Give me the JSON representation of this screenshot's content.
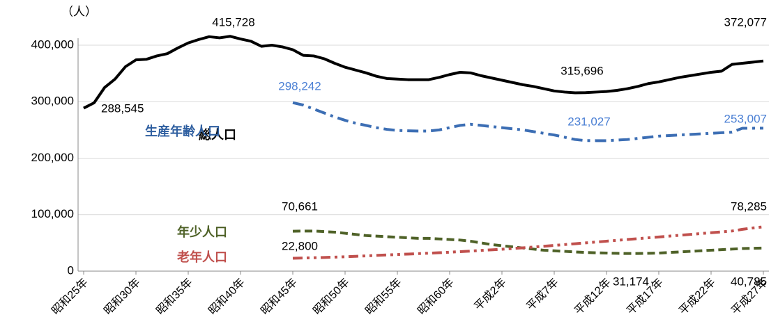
{
  "chart_data": {
    "type": "line",
    "y_label": "（人）",
    "categories": [
      "昭和25年",
      null,
      null,
      null,
      null,
      "昭和30年",
      null,
      null,
      null,
      null,
      "昭和35年",
      null,
      null,
      null,
      null,
      "昭和40年",
      null,
      null,
      null,
      null,
      "昭和45年",
      null,
      null,
      null,
      null,
      "昭和50年",
      null,
      null,
      null,
      null,
      "昭和55年",
      null,
      null,
      null,
      null,
      "昭和60年",
      null,
      null,
      null,
      null,
      "平成2年",
      null,
      null,
      null,
      null,
      "平成7年",
      null,
      null,
      null,
      null,
      "平成12年",
      null,
      null,
      null,
      null,
      "平成17年",
      null,
      null,
      null,
      null,
      "平成22年",
      null,
      null,
      null,
      null,
      "平成27年"
    ],
    "ylim": [
      0,
      400000
    ],
    "yticks": [
      0,
      {
        "value": 100000,
        "label": "100,000"
      },
      {
        "value": 200000,
        "label": "200,000"
      },
      {
        "value": 300000,
        "label": "300,000"
      },
      {
        "value": 400000,
        "label": "400,000"
      }
    ],
    "grid": true,
    "series": [
      {
        "name": "総人口",
        "color": "#000000",
        "values": [
          288545,
          298000,
          325000,
          340000,
          362000,
          374000,
          375000,
          381000,
          385000,
          395000,
          404000,
          410000,
          415000,
          413000,
          415728,
          411000,
          407000,
          398000,
          400000,
          397000,
          392000,
          382000,
          381000,
          376000,
          368000,
          361000,
          356000,
          351000,
          345000,
          341000,
          340000,
          339000,
          339000,
          339000,
          343000,
          348000,
          352000,
          351000,
          346000,
          342000,
          338000,
          334000,
          330000,
          327000,
          323000,
          319000,
          317000,
          315696,
          316000,
          317000,
          318000,
          320000,
          323000,
          327000,
          332000,
          335000,
          339000,
          343000,
          346000,
          349000,
          352000,
          354000,
          366000,
          368000,
          370000,
          372077
        ],
        "value_labels": [
          "288,545",
          null,
          null,
          null,
          null,
          null,
          null,
          null,
          null,
          null,
          null,
          null,
          null,
          null,
          "415,728",
          null,
          null,
          null,
          null,
          null,
          null,
          null,
          null,
          null,
          null,
          null,
          null,
          null,
          null,
          null,
          null,
          null,
          null,
          null,
          null,
          null,
          null,
          null,
          null,
          null,
          null,
          null,
          null,
          null,
          null,
          null,
          null,
          "315,696",
          null,
          null,
          null,
          null,
          null,
          null,
          null,
          null,
          null,
          null,
          null,
          null,
          null,
          null,
          null,
          null,
          null,
          "372,077"
        ]
      },
      {
        "name": "生産年齢人口",
        "color": "#3c6eb4",
        "values": [
          null,
          null,
          null,
          null,
          null,
          null,
          null,
          null,
          null,
          null,
          null,
          null,
          null,
          null,
          null,
          null,
          null,
          null,
          null,
          null,
          298242,
          294000,
          287000,
          280000,
          273000,
          267000,
          262000,
          258000,
          254000,
          251000,
          249000,
          248500,
          248000,
          248000,
          250000,
          254000,
          258000,
          260000,
          258000,
          256000,
          254000,
          252000,
          250000,
          247000,
          244000,
          241000,
          237000,
          233000,
          231027,
          231000,
          231000,
          232000,
          233000,
          235000,
          237000,
          239000,
          240000,
          241000,
          242000,
          243000,
          244000,
          245000,
          246000,
          253000,
          253000,
          253007
        ],
        "value_labels": [
          null,
          null,
          null,
          null,
          null,
          null,
          null,
          null,
          null,
          null,
          null,
          null,
          null,
          null,
          null,
          null,
          null,
          null,
          null,
          null,
          "298,242",
          null,
          null,
          null,
          null,
          null,
          null,
          null,
          null,
          null,
          null,
          null,
          null,
          null,
          null,
          null,
          null,
          null,
          null,
          null,
          null,
          null,
          null,
          null,
          null,
          null,
          null,
          null,
          "231,027",
          null,
          null,
          null,
          null,
          null,
          null,
          null,
          null,
          null,
          null,
          null,
          null,
          null,
          null,
          null,
          null,
          "253,007"
        ]
      },
      {
        "name": "年少人口",
        "color": "#4f6228",
        "values": [
          null,
          null,
          null,
          null,
          null,
          null,
          null,
          null,
          null,
          null,
          null,
          null,
          null,
          null,
          null,
          null,
          null,
          null,
          null,
          null,
          70661,
          71000,
          71000,
          70000,
          69000,
          67000,
          65000,
          63000,
          62000,
          61000,
          60000,
          59000,
          58000,
          58000,
          57000,
          56000,
          55000,
          53000,
          50000,
          47000,
          45000,
          43000,
          41000,
          39000,
          37000,
          36000,
          35000,
          34000,
          33000,
          32500,
          32000,
          31500,
          31174,
          31200,
          31500,
          32000,
          33000,
          34000,
          35000,
          36000,
          37000,
          38000,
          39000,
          40000,
          40500,
          40785
        ],
        "value_labels": [
          null,
          null,
          null,
          null,
          null,
          null,
          null,
          null,
          null,
          null,
          null,
          null,
          null,
          null,
          null,
          null,
          null,
          null,
          null,
          null,
          "70,661",
          null,
          null,
          null,
          null,
          null,
          null,
          null,
          null,
          null,
          null,
          null,
          null,
          null,
          null,
          null,
          null,
          null,
          null,
          null,
          null,
          null,
          null,
          null,
          null,
          null,
          null,
          null,
          null,
          null,
          null,
          null,
          "31,174",
          null,
          null,
          null,
          null,
          null,
          null,
          null,
          null,
          null,
          null,
          null,
          null,
          "40,785"
        ]
      },
      {
        "name": "老年人口",
        "color": "#c0504d",
        "values": [
          null,
          null,
          null,
          null,
          null,
          null,
          null,
          null,
          null,
          null,
          null,
          null,
          null,
          null,
          null,
          null,
          null,
          null,
          null,
          null,
          22800,
          23200,
          23700,
          24200,
          24800,
          25500,
          26200,
          27000,
          27800,
          28600,
          29400,
          30200,
          31000,
          31800,
          32600,
          33500,
          34500,
          35500,
          36600,
          37700,
          38800,
          40000,
          41300,
          42600,
          44000,
          45500,
          47000,
          48500,
          50000,
          51500,
          53000,
          54500,
          56000,
          57500,
          59000,
          60500,
          62000,
          63500,
          65000,
          66500,
          68000,
          69500,
          71000,
          74000,
          76500,
          78285
        ],
        "value_labels": [
          null,
          null,
          null,
          null,
          null,
          null,
          null,
          null,
          null,
          null,
          null,
          null,
          null,
          null,
          null,
          null,
          null,
          null,
          null,
          null,
          "22,800",
          null,
          null,
          null,
          null,
          null,
          null,
          null,
          null,
          null,
          null,
          null,
          null,
          null,
          null,
          null,
          null,
          null,
          null,
          null,
          null,
          null,
          null,
          null,
          null,
          null,
          null,
          null,
          null,
          null,
          null,
          null,
          null,
          null,
          null,
          null,
          null,
          null,
          null,
          null,
          null,
          null,
          null,
          null,
          null,
          "78,285"
        ]
      }
    ]
  }
}
